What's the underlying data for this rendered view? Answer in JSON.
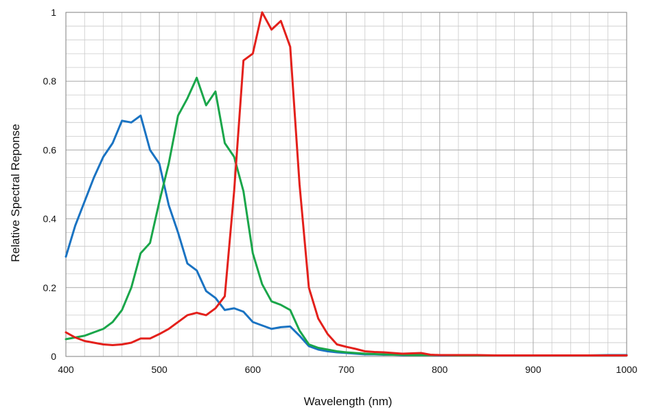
{
  "chart_data": {
    "type": "line",
    "xlabel": "Wavelength (nm)",
    "ylabel": "Relative Spectral Reponse",
    "xlim": [
      400,
      1000
    ],
    "ylim": [
      0,
      1
    ],
    "xticks": [
      400,
      500,
      600,
      700,
      800,
      900,
      1000
    ],
    "yticks": [
      0,
      0.2,
      0.4,
      0.6,
      0.8,
      1
    ],
    "ytick_labels": [
      "0",
      "0.2",
      "0.4",
      "0.6",
      "0.8",
      "1"
    ],
    "grid": true,
    "legend": "none",
    "series": [
      {
        "color": "#1a73c2",
        "x": [
          400,
          410,
          420,
          430,
          440,
          450,
          460,
          470,
          480,
          490,
          500,
          510,
          520,
          530,
          540,
          550,
          560,
          570,
          580,
          590,
          600,
          610,
          620,
          630,
          640,
          650,
          660,
          670,
          680,
          690,
          700,
          710,
          720,
          730,
          740,
          750,
          760,
          770,
          780,
          790,
          800,
          820,
          840,
          860,
          880,
          900,
          920,
          940,
          960,
          980,
          1000
        ],
        "y": [
          0.29,
          0.38,
          0.45,
          0.52,
          0.58,
          0.62,
          0.685,
          0.68,
          0.7,
          0.6,
          0.56,
          0.44,
          0.36,
          0.27,
          0.25,
          0.19,
          0.17,
          0.135,
          0.14,
          0.13,
          0.1,
          0.09,
          0.08,
          0.085,
          0.087,
          0.06,
          0.03,
          0.02,
          0.015,
          0.012,
          0.01,
          0.008,
          0.006,
          0.006,
          0.005,
          0.005,
          0.004,
          0.004,
          0.004,
          0.004,
          0.003,
          0.003,
          0.003,
          0.003,
          0.003,
          0.003,
          0.003,
          0.003,
          0.003,
          0.004,
          0.004
        ]
      },
      {
        "color": "#1aa64a",
        "x": [
          400,
          410,
          420,
          430,
          440,
          450,
          460,
          470,
          480,
          490,
          500,
          510,
          520,
          530,
          540,
          550,
          560,
          570,
          580,
          590,
          600,
          610,
          620,
          630,
          640,
          650,
          660,
          670,
          680,
          690,
          700,
          710,
          720,
          730,
          740,
          750,
          760,
          770,
          780,
          790,
          800,
          820,
          840,
          860,
          880,
          900,
          920,
          940,
          960,
          980,
          1000
        ],
        "y": [
          0.05,
          0.055,
          0.06,
          0.07,
          0.08,
          0.1,
          0.135,
          0.2,
          0.3,
          0.33,
          0.45,
          0.56,
          0.7,
          0.75,
          0.81,
          0.73,
          0.77,
          0.62,
          0.58,
          0.48,
          0.3,
          0.21,
          0.16,
          0.15,
          0.135,
          0.075,
          0.035,
          0.025,
          0.02,
          0.015,
          0.012,
          0.01,
          0.008,
          0.007,
          0.006,
          0.005,
          0.005,
          0.004,
          0.004,
          0.004,
          0.004,
          0.003,
          0.003,
          0.003,
          0.003,
          0.003,
          0.003,
          0.003,
          0.003,
          0.003,
          0.003
        ]
      },
      {
        "color": "#e3201b",
        "x": [
          400,
          410,
          420,
          430,
          440,
          450,
          460,
          470,
          480,
          490,
          500,
          510,
          520,
          530,
          540,
          550,
          560,
          570,
          580,
          590,
          600,
          610,
          620,
          630,
          640,
          650,
          660,
          670,
          680,
          690,
          700,
          710,
          720,
          730,
          740,
          750,
          760,
          770,
          780,
          790,
          800,
          820,
          840,
          860,
          880,
          900,
          920,
          940,
          960,
          980,
          1000
        ],
        "y": [
          0.07,
          0.055,
          0.045,
          0.04,
          0.035,
          0.033,
          0.035,
          0.04,
          0.052,
          0.052,
          0.065,
          0.08,
          0.1,
          0.12,
          0.127,
          0.12,
          0.14,
          0.175,
          0.48,
          0.86,
          0.88,
          1.0,
          0.95,
          0.975,
          0.9,
          0.5,
          0.2,
          0.11,
          0.065,
          0.035,
          0.028,
          0.022,
          0.015,
          0.013,
          0.012,
          0.01,
          0.008,
          0.009,
          0.01,
          0.005,
          0.004,
          0.004,
          0.004,
          0.003,
          0.003,
          0.003,
          0.003,
          0.003,
          0.003,
          0.003,
          0.003
        ]
      }
    ]
  }
}
